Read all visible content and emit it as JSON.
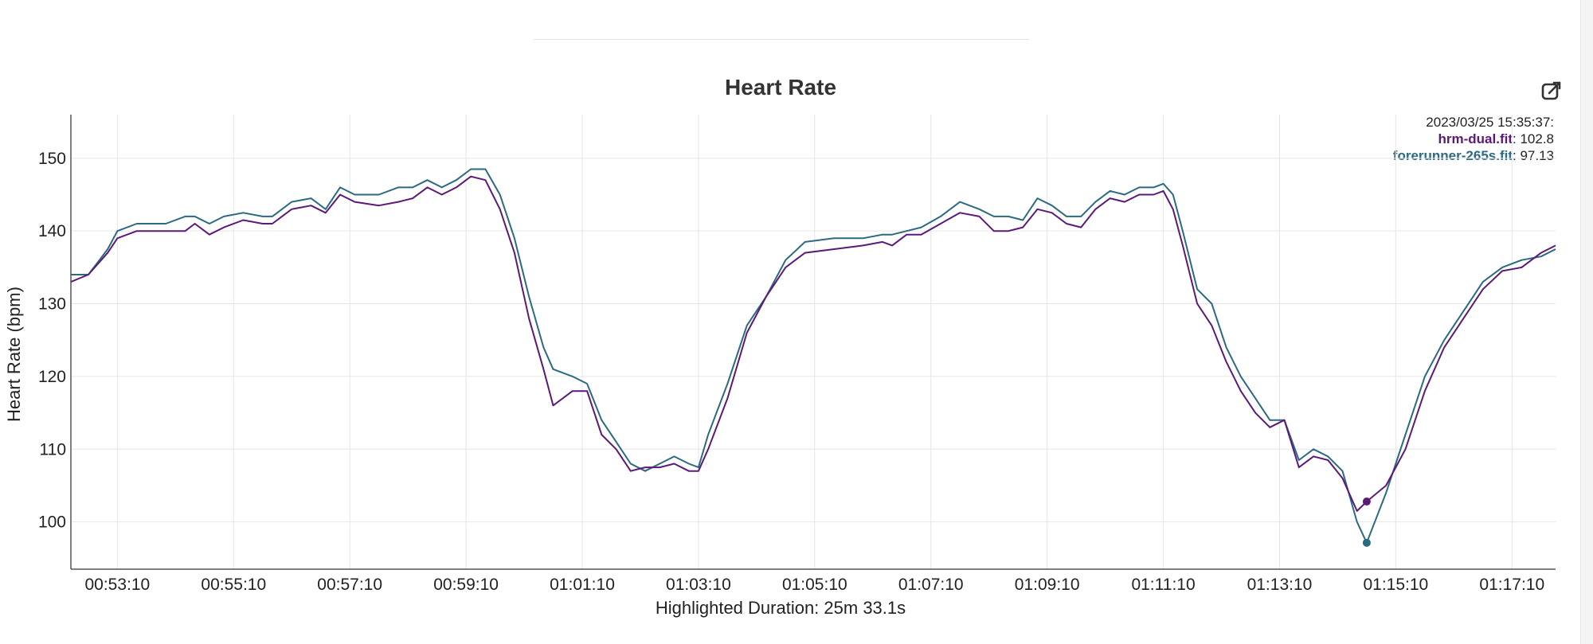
{
  "chart_data": {
    "type": "line",
    "title": "Heart Rate",
    "ylabel": "Heart Rate (bpm)",
    "xlabel": "Highlighted Duration: 25m 33.1s",
    "ylim": [
      93.5,
      156
    ],
    "xlim": [
      "00:52:22",
      "01:17:55"
    ],
    "grid": true,
    "x_ticks": [
      "00:53:10",
      "00:55:10",
      "00:57:10",
      "00:59:10",
      "01:01:10",
      "01:03:10",
      "01:05:10",
      "01:07:10",
      "01:09:10",
      "01:11:10",
      "01:13:10",
      "01:15:10",
      "01:17:10"
    ],
    "y_ticks": [
      100,
      110,
      120,
      130,
      140,
      150
    ],
    "series": [
      {
        "name": "hrm-dual.fit",
        "color": "#5b1a78",
        "points": [
          [
            "00:52:22",
            133
          ],
          [
            "00:52:40",
            134
          ],
          [
            "00:53:00",
            137
          ],
          [
            "00:53:10",
            139
          ],
          [
            "00:53:30",
            140
          ],
          [
            "00:54:00",
            140
          ],
          [
            "00:54:20",
            140
          ],
          [
            "00:54:30",
            141
          ],
          [
            "00:54:45",
            139.5
          ],
          [
            "00:55:00",
            140.5
          ],
          [
            "00:55:20",
            141.5
          ],
          [
            "00:55:40",
            141
          ],
          [
            "00:55:50",
            141
          ],
          [
            "00:56:10",
            143
          ],
          [
            "00:56:30",
            143.5
          ],
          [
            "00:56:45",
            142.5
          ],
          [
            "00:57:00",
            145
          ],
          [
            "00:57:15",
            144
          ],
          [
            "00:57:40",
            143.5
          ],
          [
            "00:58:00",
            144
          ],
          [
            "00:58:15",
            144.5
          ],
          [
            "00:58:30",
            146
          ],
          [
            "00:58:45",
            145
          ],
          [
            "00:59:00",
            146
          ],
          [
            "00:59:15",
            147.5
          ],
          [
            "00:59:30",
            147
          ],
          [
            "00:59:45",
            143
          ],
          [
            "01:00:00",
            137
          ],
          [
            "01:00:15",
            128
          ],
          [
            "01:00:30",
            121
          ],
          [
            "01:00:40",
            116
          ],
          [
            "01:01:00",
            118
          ],
          [
            "01:01:15",
            118
          ],
          [
            "01:01:30",
            112
          ],
          [
            "01:01:45",
            110
          ],
          [
            "01:02:00",
            107
          ],
          [
            "01:02:15",
            107.5
          ],
          [
            "01:02:30",
            107.5
          ],
          [
            "01:02:45",
            108
          ],
          [
            "01:03:00",
            107
          ],
          [
            "01:03:10",
            107
          ],
          [
            "01:03:20",
            110
          ],
          [
            "01:03:40",
            117
          ],
          [
            "01:04:00",
            126
          ],
          [
            "01:04:20",
            131
          ],
          [
            "01:04:40",
            135
          ],
          [
            "01:05:00",
            137
          ],
          [
            "01:05:30",
            137.5
          ],
          [
            "01:06:00",
            138
          ],
          [
            "01:06:20",
            138.5
          ],
          [
            "01:06:30",
            138
          ],
          [
            "01:06:45",
            139.5
          ],
          [
            "01:07:00",
            139.5
          ],
          [
            "01:07:20",
            141
          ],
          [
            "01:07:40",
            142.5
          ],
          [
            "01:08:00",
            142
          ],
          [
            "01:08:15",
            140
          ],
          [
            "01:08:30",
            140
          ],
          [
            "01:08:45",
            140.5
          ],
          [
            "01:09:00",
            143
          ],
          [
            "01:09:15",
            142.5
          ],
          [
            "01:09:30",
            141
          ],
          [
            "01:09:45",
            140.5
          ],
          [
            "01:10:00",
            143
          ],
          [
            "01:10:15",
            144.5
          ],
          [
            "01:10:30",
            144
          ],
          [
            "01:10:45",
            145
          ],
          [
            "01:11:00",
            145
          ],
          [
            "01:11:10",
            145.5
          ],
          [
            "01:11:20",
            143
          ],
          [
            "01:11:30",
            138
          ],
          [
            "01:11:45",
            130
          ],
          [
            "01:12:00",
            127
          ],
          [
            "01:12:15",
            122
          ],
          [
            "01:12:30",
            118
          ],
          [
            "01:12:45",
            115
          ],
          [
            "01:13:00",
            113
          ],
          [
            "01:13:15",
            114
          ],
          [
            "01:13:30",
            107.5
          ],
          [
            "01:13:45",
            109
          ],
          [
            "01:14:00",
            108.5
          ],
          [
            "01:14:15",
            106
          ],
          [
            "01:14:30",
            101.5
          ],
          [
            "01:14:40",
            102.8
          ],
          [
            "01:15:00",
            105
          ],
          [
            "01:15:20",
            110
          ],
          [
            "01:15:40",
            118
          ],
          [
            "01:16:00",
            124
          ],
          [
            "01:16:20",
            128
          ],
          [
            "01:16:40",
            132
          ],
          [
            "01:17:00",
            134.5
          ],
          [
            "01:17:20",
            135
          ],
          [
            "01:17:40",
            137
          ],
          [
            "01:17:55",
            138
          ]
        ]
      },
      {
        "name": "forerunner-265s.fit",
        "color": "#2b6a80",
        "points": [
          [
            "00:52:22",
            134
          ],
          [
            "00:52:40",
            134
          ],
          [
            "00:53:00",
            137.5
          ],
          [
            "00:53:10",
            140
          ],
          [
            "00:53:30",
            141
          ],
          [
            "00:54:00",
            141
          ],
          [
            "00:54:20",
            142
          ],
          [
            "00:54:30",
            142
          ],
          [
            "00:54:45",
            141
          ],
          [
            "00:55:00",
            142
          ],
          [
            "00:55:20",
            142.5
          ],
          [
            "00:55:40",
            142
          ],
          [
            "00:55:50",
            142
          ],
          [
            "00:56:10",
            144
          ],
          [
            "00:56:30",
            144.5
          ],
          [
            "00:56:45",
            143
          ],
          [
            "00:57:00",
            146
          ],
          [
            "00:57:15",
            145
          ],
          [
            "00:57:40",
            145
          ],
          [
            "00:58:00",
            146
          ],
          [
            "00:58:15",
            146
          ],
          [
            "00:58:30",
            147
          ],
          [
            "00:58:45",
            146
          ],
          [
            "00:59:00",
            147
          ],
          [
            "00:59:15",
            148.5
          ],
          [
            "00:59:30",
            148.5
          ],
          [
            "00:59:45",
            145
          ],
          [
            "01:00:00",
            139
          ],
          [
            "01:00:15",
            131
          ],
          [
            "01:00:30",
            124
          ],
          [
            "01:00:40",
            121
          ],
          [
            "01:01:00",
            120
          ],
          [
            "01:01:15",
            119
          ],
          [
            "01:01:30",
            114
          ],
          [
            "01:01:45",
            111
          ],
          [
            "01:02:00",
            108
          ],
          [
            "01:02:15",
            107
          ],
          [
            "01:02:30",
            108
          ],
          [
            "01:02:45",
            109
          ],
          [
            "01:03:00",
            108
          ],
          [
            "01:03:10",
            107.5
          ],
          [
            "01:03:20",
            112
          ],
          [
            "01:03:40",
            119
          ],
          [
            "01:04:00",
            127
          ],
          [
            "01:04:20",
            131
          ],
          [
            "01:04:40",
            136
          ],
          [
            "01:05:00",
            138.5
          ],
          [
            "01:05:30",
            139
          ],
          [
            "01:06:00",
            139
          ],
          [
            "01:06:20",
            139.5
          ],
          [
            "01:06:30",
            139.5
          ],
          [
            "01:06:45",
            140
          ],
          [
            "01:07:00",
            140.5
          ],
          [
            "01:07:20",
            142
          ],
          [
            "01:07:40",
            144
          ],
          [
            "01:08:00",
            143
          ],
          [
            "01:08:15",
            142
          ],
          [
            "01:08:30",
            142
          ],
          [
            "01:08:45",
            141.5
          ],
          [
            "01:09:00",
            144.5
          ],
          [
            "01:09:15",
            143.5
          ],
          [
            "01:09:30",
            142
          ],
          [
            "01:09:45",
            142
          ],
          [
            "01:10:00",
            144
          ],
          [
            "01:10:15",
            145.5
          ],
          [
            "01:10:30",
            145
          ],
          [
            "01:10:45",
            146
          ],
          [
            "01:11:00",
            146
          ],
          [
            "01:11:10",
            146.5
          ],
          [
            "01:11:20",
            145
          ],
          [
            "01:11:30",
            140
          ],
          [
            "01:11:45",
            132
          ],
          [
            "01:12:00",
            130
          ],
          [
            "01:12:15",
            124
          ],
          [
            "01:12:30",
            120
          ],
          [
            "01:12:45",
            117
          ],
          [
            "01:13:00",
            114
          ],
          [
            "01:13:15",
            114
          ],
          [
            "01:13:30",
            108.5
          ],
          [
            "01:13:45",
            110
          ],
          [
            "01:14:00",
            109
          ],
          [
            "01:14:15",
            107
          ],
          [
            "01:14:30",
            100
          ],
          [
            "01:14:40",
            97.13
          ],
          [
            "01:15:00",
            104
          ],
          [
            "01:15:20",
            112
          ],
          [
            "01:15:40",
            120
          ],
          [
            "01:16:00",
            125
          ],
          [
            "01:16:20",
            129
          ],
          [
            "01:16:40",
            133
          ],
          [
            "01:17:00",
            135
          ],
          [
            "01:17:20",
            136
          ],
          [
            "01:17:40",
            136.5
          ],
          [
            "01:17:55",
            137.5
          ]
        ]
      }
    ],
    "hover": {
      "timestamp": "2023/03/25 15:35:37:",
      "x": "01:14:40",
      "values": [
        {
          "name": "hrm-dual.fit",
          "value": "102.8"
        },
        {
          "name": "forerunner-265s.fit",
          "value": "97.13"
        }
      ]
    }
  },
  "icons": {
    "edit": "edit-external-icon"
  }
}
